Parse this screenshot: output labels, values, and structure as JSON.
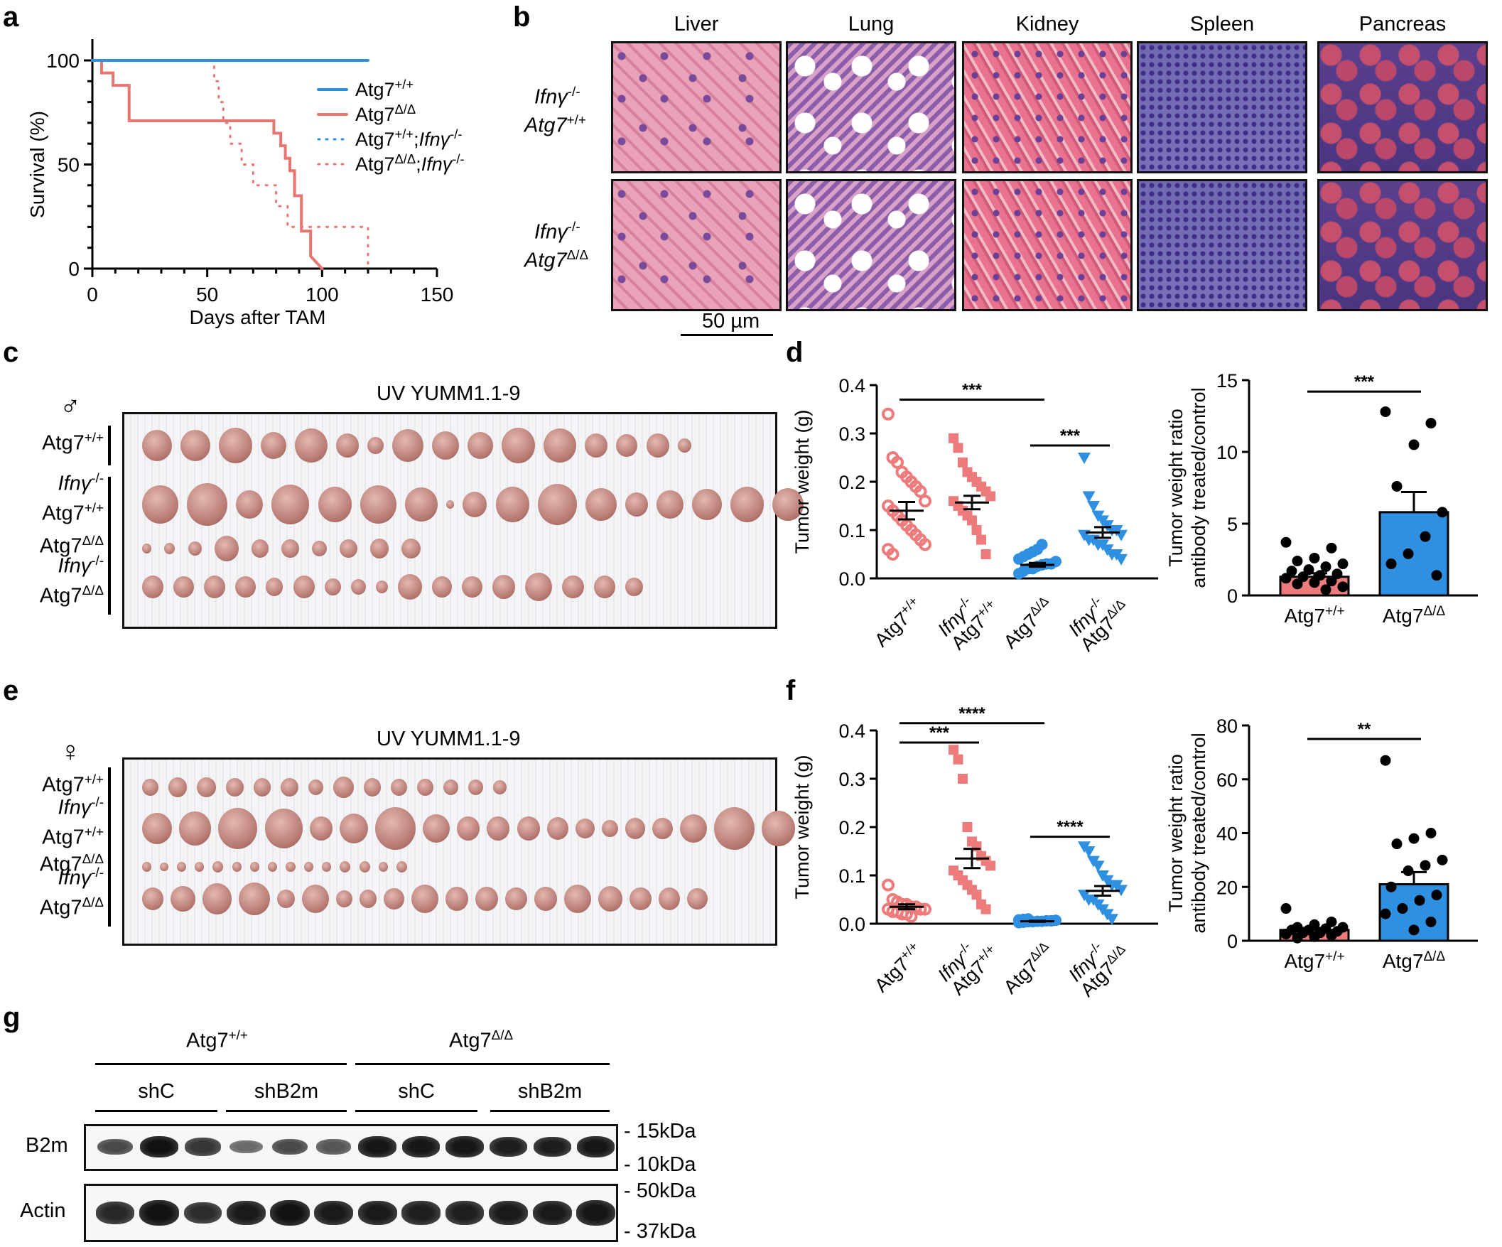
{
  "panels": {
    "a": "a",
    "b": "b",
    "c": "c",
    "d": "d",
    "e": "e",
    "f": "f",
    "g": "g"
  },
  "panel_a": {
    "ylabel": "Survival (%)",
    "xlabel": "Days after TAM",
    "yticks": [
      "0",
      "50",
      "100"
    ],
    "xticks": [
      "0",
      "50",
      "100",
      "150"
    ],
    "legend": [
      {
        "base": "Atg7",
        "sup": "+/+",
        "ital": "",
        "sup2": "",
        "color": "#2f8fe0",
        "style": "solid"
      },
      {
        "base": "Atg7",
        "sup": "Δ/Δ",
        "ital": "",
        "sup2": "",
        "color": "#e8756f",
        "style": "solid"
      },
      {
        "base": "Atg7",
        "sup": "+/+",
        "ital": ";Ifnγ",
        "sup2": "-/-",
        "color": "#2f8fe0",
        "style": "dotted"
      },
      {
        "base": "Atg7",
        "sup": "Δ/Δ",
        "ital": ";Ifnγ",
        "sup2": "-/-",
        "color": "#e8756f",
        "style": "dotted"
      }
    ]
  },
  "panel_b": {
    "columns": [
      "Liver",
      "Lung",
      "Kidney",
      "Spleen",
      "Pancreas"
    ],
    "row1": {
      "l1": "Ifnγ",
      "l1sup": "-/-",
      "l2": "Atg7",
      "l2sup": "+/+"
    },
    "row2": {
      "l1": "Ifnγ",
      "l1sup": "-/-",
      "l2": "Atg7",
      "l2sup": "Δ/Δ"
    },
    "scale": "50 µm"
  },
  "panel_c": {
    "title": "UV YUMM1.1-9",
    "symbol": "♂",
    "rows": [
      {
        "a": "Atg7",
        "asup": "+/+",
        "b": "",
        "bsup": ""
      },
      {
        "a": "Ifnγ",
        "asup": "-/-",
        "b": "Atg7",
        "bsup": "+/+"
      },
      {
        "a": "Atg7",
        "asup": "Δ/Δ",
        "b": "",
        "bsup": ""
      },
      {
        "a": "Ifnγ",
        "asup": "-/-",
        "b": "Atg7",
        "bsup": "Δ/Δ"
      }
    ]
  },
  "panel_e": {
    "title": "UV YUMM1.1-9",
    "symbol": "♀",
    "rows": [
      {
        "a": "Atg7",
        "asup": "+/+",
        "b": "",
        "bsup": ""
      },
      {
        "a": "Ifnγ",
        "asup": "-/-",
        "b": "Atg7",
        "bsup": "+/+"
      },
      {
        "a": "Atg7",
        "asup": "Δ/Δ",
        "b": "",
        "bsup": ""
      },
      {
        "a": "Ifnγ",
        "asup": "-/-",
        "b": "Atg7",
        "bsup": "Δ/Δ"
      }
    ]
  },
  "chart_data": [
    {
      "id": "a",
      "type": "line",
      "xlabel": "Days after TAM",
      "ylabel": "Survival (%)",
      "xlim": [
        0,
        150
      ],
      "ylim": [
        0,
        100
      ],
      "series": [
        {
          "name": "Atg7+/+",
          "x": [
            0,
            120
          ],
          "y": [
            100,
            100
          ]
        },
        {
          "name": "Atg7Δ/Δ",
          "x": [
            0,
            4,
            4,
            9,
            9,
            16,
            16,
            79,
            79,
            82,
            82,
            84,
            84,
            86,
            86,
            88,
            88,
            91,
            91,
            95,
            95,
            100
          ],
          "y": [
            100,
            100,
            94,
            94,
            88,
            88,
            71,
            71,
            65,
            65,
            59,
            59,
            53,
            53,
            47,
            47,
            35,
            35,
            18,
            18,
            6,
            0
          ]
        },
        {
          "name": "Atg7+/+;Ifnγ-/-",
          "x": [
            0,
            120
          ],
          "y": [
            100,
            100
          ]
        },
        {
          "name": "Atg7Δ/Δ;Ifnγ-/-",
          "x": [
            0,
            53,
            53,
            55,
            55,
            57,
            57,
            60,
            60,
            65,
            65,
            70,
            70,
            80,
            80,
            85,
            85,
            88,
            88,
            120,
            120
          ],
          "y": [
            100,
            100,
            90,
            90,
            80,
            80,
            70,
            70,
            60,
            60,
            50,
            50,
            40,
            40,
            30,
            30,
            20,
            20,
            20,
            20,
            0
          ]
        }
      ]
    },
    {
      "id": "d-left",
      "type": "scatter",
      "ylabel": "Tumor weight (g)",
      "ylim": [
        0,
        0.4
      ],
      "yticks": [
        "0.0",
        "0.1",
        "0.2",
        "0.3",
        "0.4"
      ],
      "categories": [
        {
          "a": "Atg7",
          "asup": "+/+",
          "b": "",
          "bsup": ""
        },
        {
          "a": "Ifnγ",
          "asup": "-/-",
          "b": "Atg7",
          "bsup": "+/+"
        },
        {
          "a": "Atg7",
          "asup": "Δ/Δ",
          "b": "",
          "bsup": ""
        },
        {
          "a": "Ifnγ",
          "asup": "-/-",
          "b": "Atg7",
          "bsup": "Δ/Δ"
        }
      ],
      "groups": [
        {
          "mean": 0.14,
          "sem": 0.018,
          "marker": "circle-open",
          "color": "#ee7b7b",
          "values": [
            0.34,
            0.25,
            0.24,
            0.22,
            0.21,
            0.2,
            0.19,
            0.18,
            0.16,
            0.15,
            0.14,
            0.13,
            0.12,
            0.11,
            0.1,
            0.09,
            0.08,
            0.07,
            0.06,
            0.05
          ]
        },
        {
          "mean": 0.157,
          "sem": 0.014,
          "marker": "square",
          "color": "#ee7b7b",
          "values": [
            0.29,
            0.27,
            0.24,
            0.22,
            0.21,
            0.2,
            0.19,
            0.18,
            0.17,
            0.16,
            0.15,
            0.14,
            0.13,
            0.12,
            0.1,
            0.08,
            0.05
          ]
        },
        {
          "mean": 0.028,
          "sem": 0.004,
          "marker": "circle",
          "color": "#2f8fe0",
          "values": [
            0.01,
            0.015,
            0.02,
            0.02,
            0.025,
            0.028,
            0.03,
            0.03,
            0.035,
            0.04,
            0.045,
            0.05,
            0.055,
            0.06,
            0.07
          ]
        },
        {
          "mean": 0.095,
          "sem": 0.011,
          "marker": "triangle-down",
          "color": "#2f8fe0",
          "values": [
            0.25,
            0.17,
            0.15,
            0.13,
            0.12,
            0.11,
            0.1,
            0.1,
            0.09,
            0.09,
            0.08,
            0.08,
            0.07,
            0.07,
            0.06,
            0.05,
            0.05,
            0.04
          ]
        }
      ],
      "annotations": [
        {
          "label": "***",
          "from": 0,
          "to": 2,
          "y": 0.37
        },
        {
          "label": "***",
          "from": 2,
          "to": 3,
          "y": 0.275
        }
      ]
    },
    {
      "id": "d-right",
      "type": "bar",
      "ylabel": "Tumor weight ratio antibody treated/control",
      "ylabel_lines": [
        "Tumor weight ratio",
        "antibody treated/control"
      ],
      "ylim": [
        0,
        15
      ],
      "yticks": [
        "0",
        "5",
        "10",
        "15"
      ],
      "categories": [
        {
          "a": "Atg7",
          "asup": "+/+"
        },
        {
          "a": "Atg7",
          "asup": "Δ/Δ"
        }
      ],
      "values": [
        1.3,
        5.8
      ],
      "sem": [
        0.25,
        1.4
      ],
      "colors": [
        "#ee7b7b",
        "#2f8fe0"
      ],
      "points": [
        [
          3.7,
          3.3,
          2.6,
          2.4,
          2.2,
          2.0,
          1.8,
          1.7,
          1.5,
          1.4,
          1.3,
          1.2,
          1.0,
          0.9,
          0.8,
          0.6,
          0.4
        ],
        [
          12.8,
          12.0,
          10.5,
          7.6,
          5.8,
          4.1,
          2.9,
          2.2,
          1.4
        ]
      ],
      "annotations": [
        {
          "label": "***",
          "from": 0,
          "to": 1,
          "y": 14.2
        }
      ]
    },
    {
      "id": "f-left",
      "type": "scatter",
      "ylabel": "Tumor weight (g)",
      "ylim": [
        0,
        0.4
      ],
      "yticks": [
        "0.0",
        "0.1",
        "0.2",
        "0.3",
        "0.4"
      ],
      "categories": [
        {
          "a": "Atg7",
          "asup": "+/+",
          "b": "",
          "bsup": ""
        },
        {
          "a": "Ifnγ",
          "asup": "-/-",
          "b": "Atg7",
          "bsup": "+/+"
        },
        {
          "a": "Atg7",
          "asup": "Δ/Δ",
          "b": "",
          "bsup": ""
        },
        {
          "a": "Ifnγ",
          "asup": "-/-",
          "b": "Atg7",
          "bsup": "Δ/Δ"
        }
      ],
      "groups": [
        {
          "mean": 0.035,
          "sem": 0.005,
          "marker": "circle-open",
          "color": "#ee7b7b",
          "values": [
            0.08,
            0.05,
            0.045,
            0.04,
            0.04,
            0.035,
            0.035,
            0.03,
            0.03,
            0.03,
            0.025,
            0.025,
            0.02,
            0.02,
            0.015
          ]
        },
        {
          "mean": 0.135,
          "sem": 0.02,
          "marker": "square",
          "color": "#ee7b7b",
          "values": [
            0.36,
            0.34,
            0.3,
            0.2,
            0.17,
            0.16,
            0.14,
            0.13,
            0.12,
            0.11,
            0.1,
            0.09,
            0.08,
            0.07,
            0.06,
            0.04,
            0.03
          ]
        },
        {
          "mean": 0.005,
          "sem": 0.001,
          "marker": "circle",
          "color": "#2f8fe0",
          "values": [
            0.002,
            0.003,
            0.004,
            0.004,
            0.005,
            0.005,
            0.006,
            0.006,
            0.007,
            0.008,
            0.009,
            0.01
          ]
        },
        {
          "mean": 0.068,
          "sem": 0.01,
          "marker": "triangle-down",
          "color": "#2f8fe0",
          "values": [
            0.16,
            0.15,
            0.13,
            0.12,
            0.1,
            0.09,
            0.08,
            0.08,
            0.07,
            0.06,
            0.05,
            0.05,
            0.04,
            0.03,
            0.02,
            0.01
          ]
        }
      ],
      "annotations": [
        {
          "label": "****",
          "from": 0,
          "to": 2,
          "y": 0.415
        },
        {
          "label": "***",
          "from": 0,
          "to": 1,
          "y": 0.375
        },
        {
          "label": "****",
          "from": 2,
          "to": 3,
          "y": 0.18
        }
      ]
    },
    {
      "id": "f-right",
      "type": "bar",
      "ylabel": "Tumor weight ratio antibody treated/control",
      "ylabel_lines": [
        "Tumor weight ratio",
        "antibody treated/control"
      ],
      "ylim": [
        0,
        80
      ],
      "yticks": [
        "0",
        "20",
        "40",
        "60",
        "80"
      ],
      "categories": [
        {
          "a": "Atg7",
          "asup": "+/+"
        },
        {
          "a": "Atg7",
          "asup": "Δ/Δ"
        }
      ],
      "values": [
        4.0,
        21.0
      ],
      "sem": [
        0.8,
        4.5
      ],
      "colors": [
        "#ee7b7b",
        "#2f8fe0"
      ],
      "points": [
        [
          12,
          7,
          6,
          5,
          5,
          4.5,
          4,
          4,
          3.5,
          3,
          3,
          2.5,
          2,
          1.5,
          1
        ],
        [
          67,
          40,
          38,
          36,
          30,
          28,
          26,
          20,
          17,
          15,
          12,
          10,
          7,
          4
        ]
      ],
      "annotations": [
        {
          "label": "**",
          "from": 0,
          "to": 1,
          "y": 75
        }
      ]
    }
  ],
  "panel_g": {
    "group1": {
      "base": "Atg7",
      "sup": "+/+"
    },
    "group2": {
      "base": "Atg7",
      "sup": "Δ/Δ"
    },
    "sub": [
      "shC",
      "shB2m",
      "shC",
      "shB2m"
    ],
    "rows": [
      "B2m",
      "Actin"
    ],
    "markers": [
      "- 15kDa",
      "- 10kDa",
      "- 50kDa",
      "- 37kDa"
    ],
    "b2m_intensity": [
      0.55,
      1.0,
      0.7,
      0.3,
      0.55,
      0.45,
      0.95,
      0.95,
      0.95,
      0.9,
      0.9,
      0.95
    ],
    "actin_intensity": [
      0.75,
      1.0,
      0.7,
      0.9,
      1.0,
      0.9,
      0.9,
      0.85,
      0.85,
      0.9,
      0.9,
      0.95
    ]
  }
}
